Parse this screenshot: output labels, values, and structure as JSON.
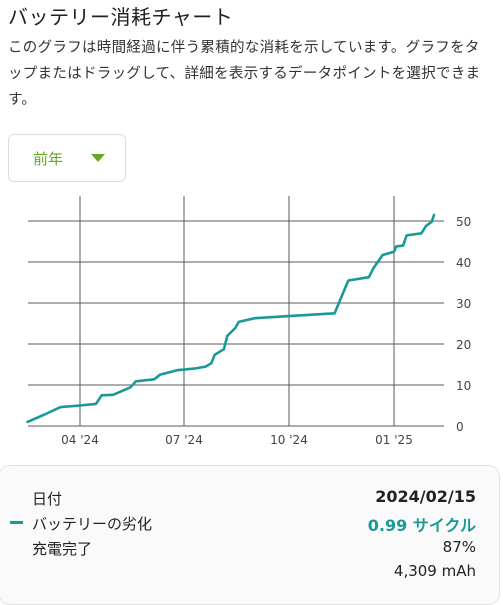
{
  "header": {
    "title": "バッテリー消耗チャート",
    "description": "このグラフは時間経過に伴う累積的な消耗を示しています。グラフをタップまたはドラッグして、詳細を表示するデータポイントを選択できます。"
  },
  "range_selector": {
    "selected": "前年"
  },
  "colors": {
    "accent": "#6aa722",
    "series": "#1a9a96",
    "grid": "#5a5a5a"
  },
  "chart_data": {
    "type": "line",
    "x_ticks": [
      "04 '24",
      "07 '24",
      "10 '24",
      "01 '25"
    ],
    "y_ticks": [
      0,
      10,
      20,
      30,
      40,
      50
    ],
    "ylim": [
      0,
      52
    ],
    "grid": true,
    "series": [
      {
        "values_note_x_is_date": true,
        "points": [
          [
            "2024-02-15",
            0.99
          ],
          [
            "2024-03-01",
            2.8
          ],
          [
            "2024-03-15",
            4.6
          ],
          [
            "2024-04-01",
            5.0
          ],
          [
            "2024-04-15",
            5.4
          ],
          [
            "2024-04-20",
            7.5
          ],
          [
            "2024-04-30",
            7.6
          ],
          [
            "2024-05-15",
            9.4
          ],
          [
            "2024-05-20",
            10.9
          ],
          [
            "2024-06-05",
            11.4
          ],
          [
            "2024-06-10",
            12.5
          ],
          [
            "2024-06-25",
            13.6
          ],
          [
            "2024-07-10",
            14.0
          ],
          [
            "2024-07-20",
            14.5
          ],
          [
            "2024-07-25",
            15.3
          ],
          [
            "2024-07-28",
            17.4
          ],
          [
            "2024-08-05",
            18.7
          ],
          [
            "2024-08-08",
            22.0
          ],
          [
            "2024-08-15",
            23.9
          ],
          [
            "2024-08-18",
            25.4
          ],
          [
            "2024-09-01",
            26.3
          ],
          [
            "2024-10-01",
            26.8
          ],
          [
            "2024-11-10",
            27.5
          ],
          [
            "2024-11-22",
            35.5
          ],
          [
            "2024-12-10",
            36.3
          ],
          [
            "2024-12-14",
            38.5
          ],
          [
            "2024-12-22",
            41.7
          ],
          [
            "2025-01-01",
            42.5
          ],
          [
            "2025-01-03",
            43.8
          ],
          [
            "2025-01-09",
            44.0
          ],
          [
            "2025-01-12",
            46.5
          ],
          [
            "2025-01-25",
            47.0
          ],
          [
            "2025-01-29",
            48.8
          ],
          [
            "2025-02-03",
            49.8
          ],
          [
            "2025-02-05",
            51.5
          ]
        ]
      }
    ]
  },
  "tooltip": {
    "date_label": "日付",
    "date_value": "2024/02/15",
    "series_label": "バッテリーの劣化",
    "series_value": "0.99 サイクル",
    "charge_label": "充電完了",
    "charge_value": "87%",
    "capacity_value": "4,309 mAh"
  }
}
